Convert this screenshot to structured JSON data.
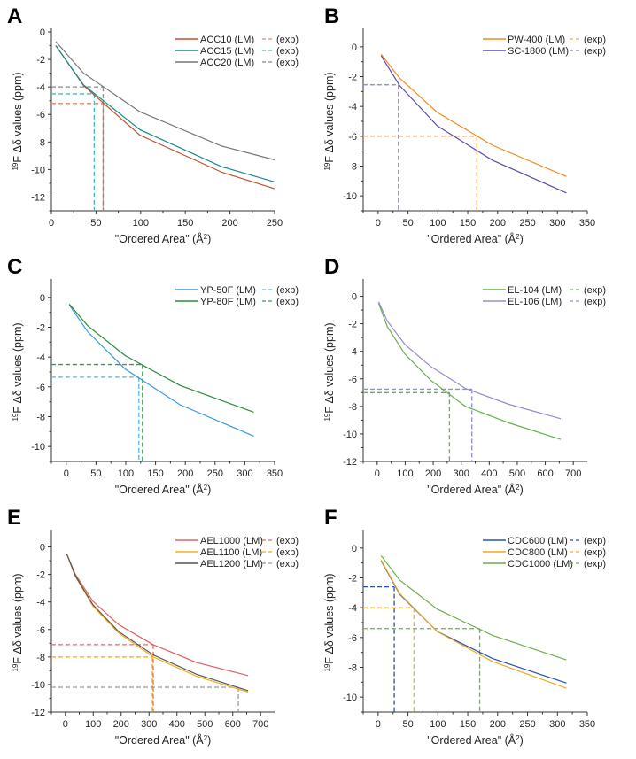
{
  "figure": {
    "ylabel_sup": "19",
    "ylabel_main": "F Δδ values (ppm)",
    "xlabel_main": "\"Ordered Area\" (Å",
    "xlabel_sup": "2",
    "xlabel_tail": ")",
    "exp_label": "(exp)"
  },
  "chart_data": [
    {
      "panel": "A",
      "type": "line",
      "xlim": [
        0,
        250
      ],
      "ylim": [
        -13,
        0
      ],
      "xticks": [
        0,
        50,
        100,
        150,
        200,
        250
      ],
      "yticks": [
        0,
        -2,
        -4,
        -6,
        -8,
        -10,
        -12
      ],
      "grid": false,
      "legend": "top-right",
      "x": [
        5,
        36,
        99,
        191,
        250
      ],
      "series": [
        {
          "name": "ACC10 (LM)",
          "color": "#c0502e",
          "exp_color": "#d98a6e",
          "values": [
            -1.0,
            -3.9,
            -7.5,
            -10.2,
            -11.4
          ],
          "exp": {
            "x": 58,
            "y": -5.2
          }
        },
        {
          "name": "ACC15 (LM)",
          "color": "#1a8a8a",
          "exp_color": "#4fb5b5",
          "values": [
            -1.0,
            -3.85,
            -7.1,
            -9.8,
            -10.9
          ],
          "exp": {
            "x": 48,
            "y": -4.5
          }
        },
        {
          "name": "ACC20 (LM)",
          "color": "#777777",
          "exp_color": "#888888",
          "values": [
            -0.7,
            -3.0,
            -5.8,
            -8.3,
            -9.3
          ],
          "exp": {
            "x": 58,
            "y": -4.0
          }
        }
      ]
    },
    {
      "panel": "B",
      "type": "line",
      "xlim": [
        -25,
        350
      ],
      "ylim": [
        -11,
        1
      ],
      "xticks": [
        0,
        50,
        100,
        150,
        200,
        250,
        300,
        350
      ],
      "yticks": [
        0,
        -2,
        -4,
        -6,
        -8,
        -10
      ],
      "grid": false,
      "legend": "top-right",
      "x": [
        5,
        36,
        99,
        191,
        315
      ],
      "series": [
        {
          "name": "PW-400 (LM)",
          "color": "#f28a1e",
          "exp_color": "#f5a860",
          "values": [
            -0.5,
            -2.1,
            -4.4,
            -6.6,
            -8.7
          ],
          "exp": {
            "x": 165,
            "y": -6.0
          }
        },
        {
          "name": "SC-1800 (LM)",
          "color": "#5b4fa8",
          "exp_color": "#8a80c8",
          "values": [
            -0.6,
            -2.6,
            -5.3,
            -7.6,
            -9.8
          ],
          "exp": {
            "x": 34,
            "y": -2.55
          }
        }
      ]
    },
    {
      "panel": "C",
      "type": "line",
      "xlim": [
        -25,
        350
      ],
      "ylim": [
        -11,
        1
      ],
      "xticks": [
        0,
        50,
        100,
        150,
        200,
        250,
        300,
        350
      ],
      "yticks": [
        0,
        -2,
        -4,
        -6,
        -8,
        -10
      ],
      "grid": false,
      "legend": "top-right",
      "x": [
        5,
        36,
        99,
        191,
        315
      ],
      "series": [
        {
          "name": "YP-50F (LM)",
          "color": "#3a9ad9",
          "exp_color": "#5fb0e6",
          "values": [
            -0.5,
            -2.3,
            -4.8,
            -7.2,
            -9.3
          ],
          "exp": {
            "x": 122,
            "y": -5.35
          }
        },
        {
          "name": "YP-80F (LM)",
          "color": "#2a8a3a",
          "exp_color": "#3a9a4a",
          "values": [
            -0.45,
            -1.9,
            -3.9,
            -5.9,
            -7.7
          ],
          "exp": {
            "x": 128,
            "y": -4.5
          }
        }
      ]
    },
    {
      "panel": "D",
      "type": "line",
      "xlim": [
        -50,
        750
      ],
      "ylim": [
        -12,
        1
      ],
      "xticks": [
        0,
        100,
        200,
        300,
        400,
        500,
        600,
        700
      ],
      "yticks": [
        0,
        -2,
        -4,
        -6,
        -8,
        -10,
        -12
      ],
      "grid": false,
      "legend": "top-right",
      "x": [
        5,
        36,
        99,
        191,
        315,
        470,
        655
      ],
      "series": [
        {
          "name": "EL-104 (LM)",
          "color": "#6ab04c",
          "exp_color": "#6ab04c",
          "values": [
            -0.5,
            -2.2,
            -4.2,
            -6.1,
            -8.0,
            -9.2,
            -10.4
          ],
          "exp": {
            "x": 258,
            "y": -7.0
          }
        },
        {
          "name": "EL-106 (LM)",
          "color": "#8f8fd0",
          "exp_color": "#8f8fd0",
          "values": [
            -0.4,
            -1.8,
            -3.5,
            -5.1,
            -6.7,
            -7.85,
            -8.9
          ],
          "exp": {
            "x": 338,
            "y": -6.75
          }
        }
      ]
    },
    {
      "panel": "E",
      "type": "line",
      "xlim": [
        -50,
        750
      ],
      "ylim": [
        -12,
        1
      ],
      "xticks": [
        0,
        100,
        200,
        300,
        400,
        500,
        600,
        700
      ],
      "yticks": [
        0,
        -2,
        -4,
        -6,
        -8,
        -10,
        -12
      ],
      "grid": false,
      "legend": "top-right",
      "x": [
        5,
        36,
        99,
        191,
        315,
        470,
        655
      ],
      "series": [
        {
          "name": "AEL1000 (LM)",
          "color": "#e06060",
          "exp_color": "#e86a6a",
          "values": [
            -0.5,
            -2.0,
            -3.95,
            -5.65,
            -7.1,
            -8.4,
            -9.35
          ],
          "exp": {
            "x": 315,
            "y": -7.1
          }
        },
        {
          "name": "AEL1100 (LM)",
          "color": "#f0b020",
          "exp_color": "#eea820",
          "values": [
            -0.5,
            -2.15,
            -4.3,
            -6.25,
            -8.0,
            -9.4,
            -10.55
          ],
          "exp": {
            "x": 312,
            "y": -8.0
          }
        },
        {
          "name": "AEL1200 (LM)",
          "color": "#555555",
          "exp_color": "#999999",
          "values": [
            -0.5,
            -2.1,
            -4.2,
            -6.15,
            -7.85,
            -9.25,
            -10.45
          ],
          "exp": {
            "x": 620,
            "y": -10.2
          }
        }
      ]
    },
    {
      "panel": "F",
      "type": "line",
      "xlim": [
        -25,
        350
      ],
      "ylim": [
        -11,
        1
      ],
      "xticks": [
        0,
        50,
        100,
        150,
        200,
        250,
        300,
        350
      ],
      "yticks": [
        0,
        -2,
        -4,
        -6,
        -8,
        -10
      ],
      "grid": false,
      "legend": "top-right",
      "x": [
        5,
        36,
        99,
        191,
        315
      ],
      "series": [
        {
          "name": "CDC600 (LM)",
          "color": "#2a50b0",
          "exp_color": "#2a50b0",
          "values": [
            -0.85,
            -3.1,
            -5.6,
            -7.4,
            -9.05
          ],
          "exp": {
            "x": 27,
            "y": -2.6
          }
        },
        {
          "name": "CDC800 (LM)",
          "color": "#f0a820",
          "exp_color": "#f0b040",
          "values": [
            -0.8,
            -3.05,
            -5.6,
            -7.6,
            -9.4
          ],
          "exp": {
            "x": 60,
            "y": -4.0
          }
        },
        {
          "name": "CDC1000 (LM)",
          "color": "#6ab04c",
          "exp_color": "#6ab04c",
          "values": [
            -0.5,
            -2.15,
            -4.1,
            -5.85,
            -7.5
          ],
          "exp": {
            "x": 170,
            "y": -5.4
          }
        }
      ]
    }
  ]
}
